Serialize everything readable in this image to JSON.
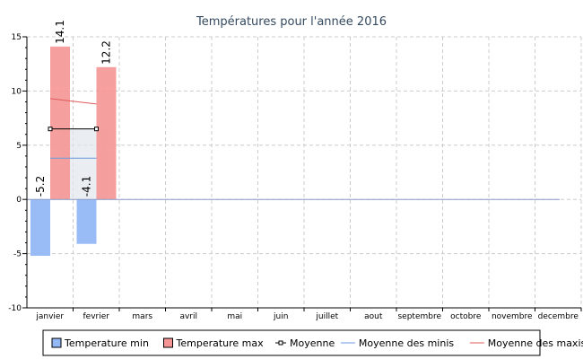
{
  "chart_data": {
    "type": "bar",
    "title": "Températures pour l'année 2016",
    "categories": [
      "janvier",
      "fevrier",
      "mars",
      "avril",
      "mai",
      "juin",
      "juillet",
      "aout",
      "septembre",
      "octobre",
      "novembre",
      "decembre"
    ],
    "ylim": [
      -10,
      15
    ],
    "yticks": [
      -10,
      -5,
      0,
      5,
      10,
      15
    ],
    "grid": true,
    "legend_position": "bottom",
    "series": [
      {
        "name": "Temperature min",
        "type": "bar",
        "color": "#93b8f5",
        "values": [
          -5.2,
          -4.1,
          null,
          null,
          null,
          null,
          null,
          null,
          null,
          null,
          null,
          null
        ]
      },
      {
        "name": "Temperature max",
        "type": "bar",
        "color": "#f59595",
        "values": [
          14.1,
          12.2,
          null,
          null,
          null,
          null,
          null,
          null,
          null,
          null,
          null,
          null
        ]
      },
      {
        "name": "Moyenne",
        "type": "line",
        "color": "#000000",
        "values": [
          6.5,
          6.5,
          null,
          null,
          null,
          null,
          null,
          null,
          null,
          null,
          null,
          null
        ]
      },
      {
        "name": "Moyenne des minis",
        "type": "line",
        "color": "#6a9ae0",
        "values": [
          3.8,
          3.8,
          null,
          null,
          null,
          null,
          null,
          null,
          null,
          null,
          null,
          null
        ]
      },
      {
        "name": "Moyenne des maxis",
        "type": "line",
        "color": "#e05a5a",
        "values": [
          9.3,
          8.8,
          null,
          null,
          null,
          null,
          null,
          null,
          null,
          null,
          null,
          null
        ]
      }
    ]
  }
}
